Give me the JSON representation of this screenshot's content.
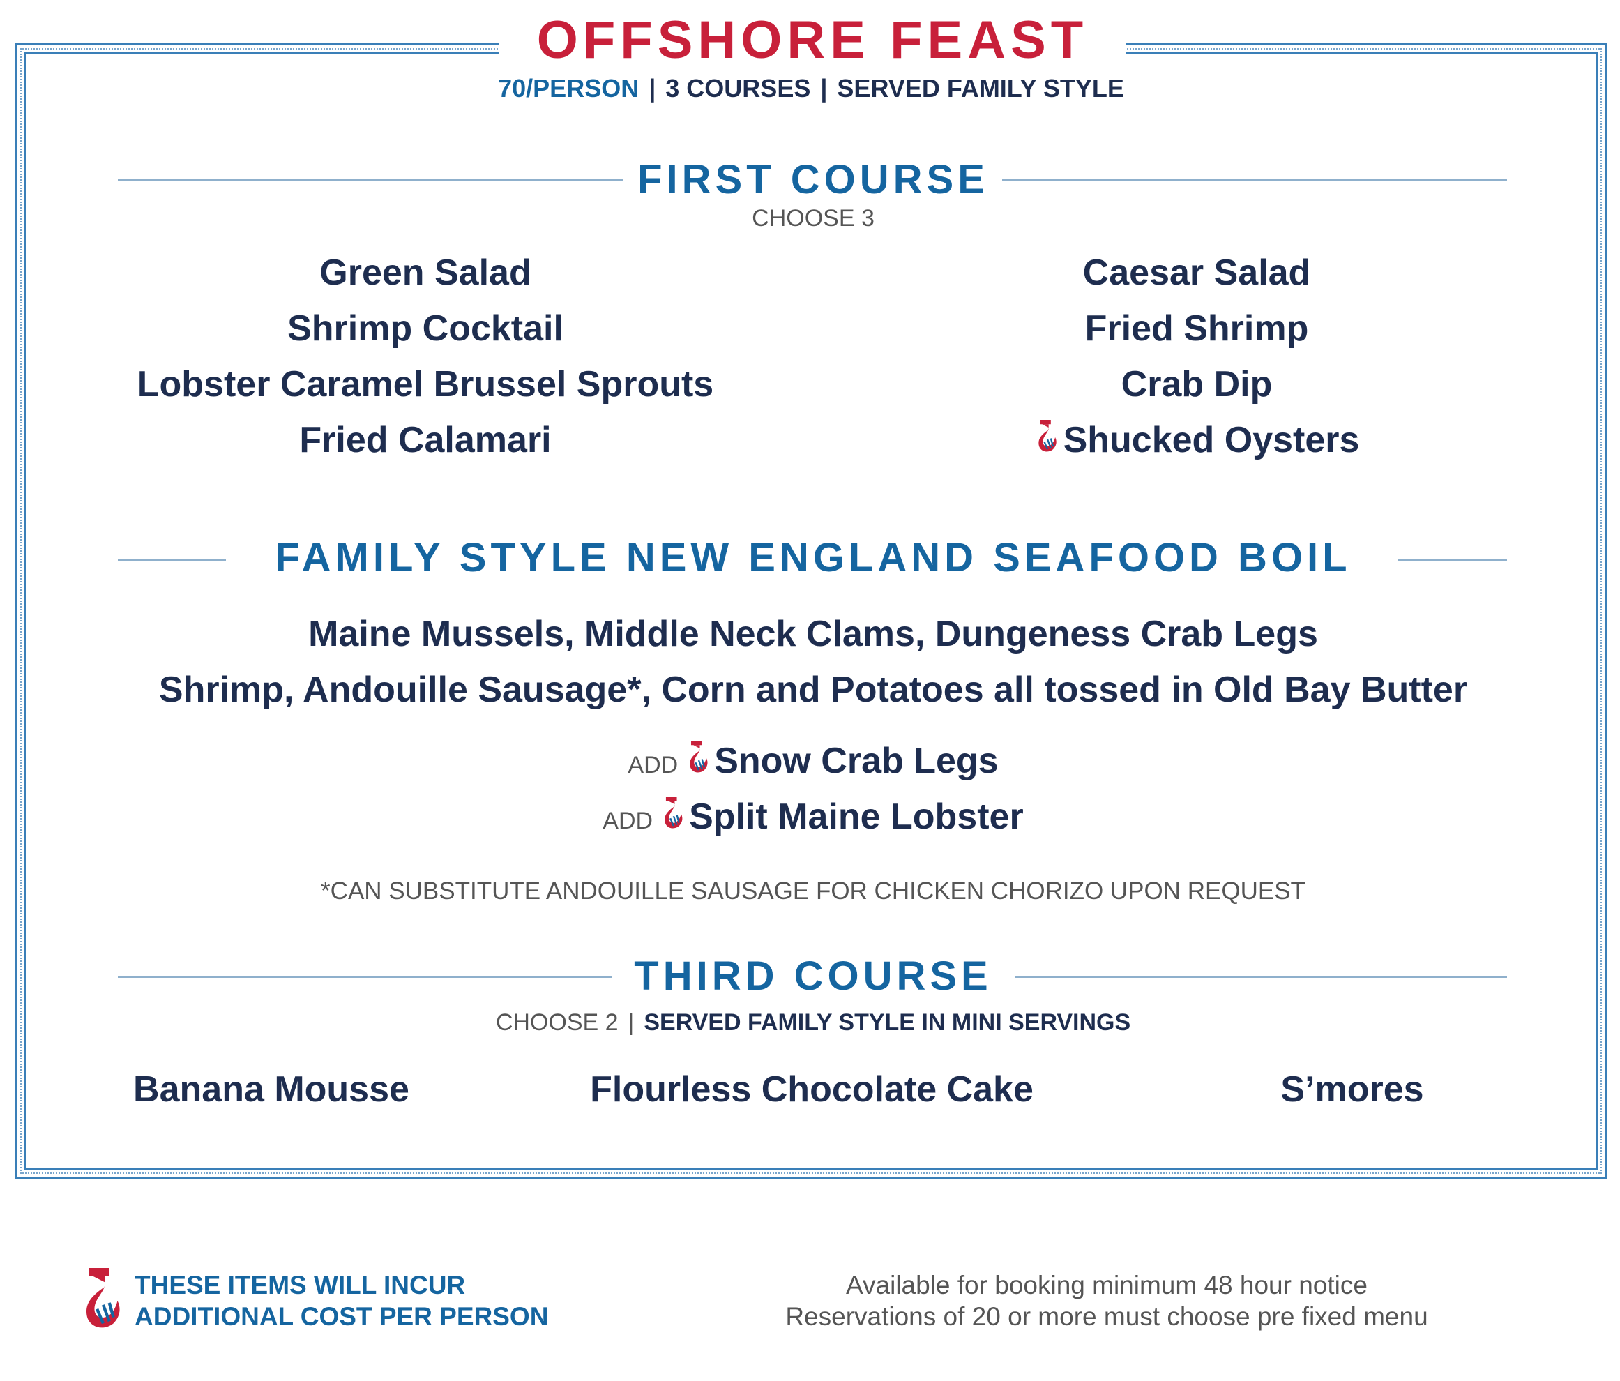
{
  "title": "OFFSHORE FEAST",
  "subtitle": {
    "price": "70/PERSON",
    "sep": "|",
    "courses": "3 COURSES",
    "style": "SERVED FAMILY STYLE"
  },
  "first_course": {
    "heading": "FIRST COURSE",
    "instruction": "CHOOSE 3",
    "left_items": [
      "Green Salad",
      "Shrimp Cocktail",
      "Lobster Caramel Brussel Sprouts",
      "Fried Calamari"
    ],
    "right_items": [
      "Caesar Salad",
      "Fried Shrimp",
      "Crab Dip",
      "Shucked Oysters"
    ]
  },
  "boil": {
    "heading": "FAMILY STYLE NEW ENGLAND SEAFOOD BOIL",
    "line1": "Maine Mussels,  Middle Neck Clams,  Dungeness Crab Legs",
    "line2": "Shrimp, Andouille Sausage*, Corn and Potatoes all tossed in Old Bay Butter",
    "addons": [
      {
        "prefix": "ADD",
        "item": "Snow Crab Legs"
      },
      {
        "prefix": "ADD",
        "item": "Split Maine Lobster"
      }
    ],
    "note": "*CAN SUBSTITUTE ANDOUILLE SAUSAGE FOR CHICKEN CHORIZO UPON REQUEST"
  },
  "third_course": {
    "heading": "THIRD COURSE",
    "instruction": "CHOOSE 2",
    "sep": "|",
    "style": "SERVED FAMILY STYLE IN MINI SERVINGS",
    "items": [
      "Banana Mousse",
      "Flourless Chocolate Cake",
      "S’mores"
    ]
  },
  "footer": {
    "legend_icon": "additional-cost-icon",
    "legend_line1": "THESE ITEMS WILL INCUR",
    "legend_line2": "ADDITIONAL COST PER PERSON",
    "info_line1": "Available for booking minimum 48 hour notice",
    "info_line2": "Reservations of 20 or more must choose pre fixed menu"
  },
  "colors": {
    "red": "#c8203a",
    "blue": "#1565a0",
    "navy": "#1e2d4f",
    "gray": "#555555"
  }
}
